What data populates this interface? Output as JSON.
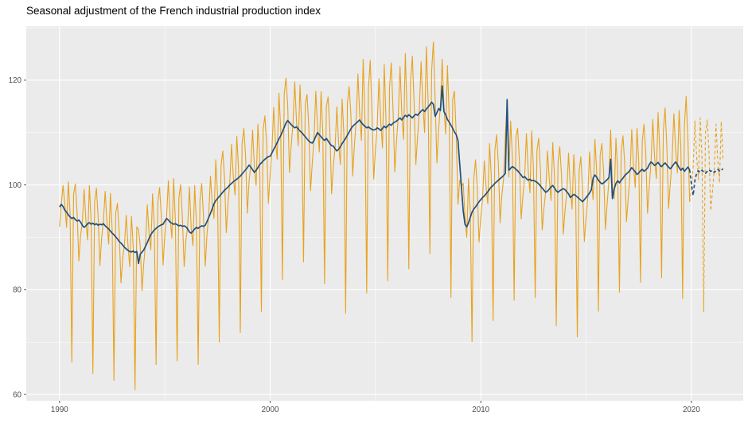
{
  "title": "Seasonal adjustment of the French industrial production index",
  "colors": {
    "raw": "#E8A21D",
    "adjusted": "#21507F",
    "panel_bg": "#EBEBEB",
    "grid_major": "#FFFFFF",
    "grid_minor": "#F6F6F6",
    "tick_mark": "#333333",
    "tick_text": "#4D4D4D",
    "title_text": "#000000"
  },
  "chart_data": {
    "type": "line",
    "title": "Seasonal adjustment of the French industrial production index",
    "xlabel": "",
    "ylabel": "",
    "grid": true,
    "legend": "none",
    "x_axis": {
      "range": [
        1988.42,
        2022.46
      ],
      "ticks": [
        1990,
        2000,
        2010,
        2020
      ],
      "minor_ticks": [
        1995,
        2005,
        2015
      ]
    },
    "y_axis": {
      "range": [
        58.8,
        130.3
      ],
      "ticks": [
        60,
        80,
        100,
        120
      ],
      "minor_ticks": [
        70,
        90,
        110,
        130
      ]
    },
    "start_year": 1990,
    "frequency": 12,
    "series": [
      {
        "name": "raw_index",
        "style": "solid",
        "color_key": "raw",
        "width": 1.1,
        "start_index": 0,
        "values": [
          92.0,
          96.4,
          99.9,
          96.3,
          91.9,
          100.6,
          94.5,
          66.2,
          98.2,
          100.2,
          94.7,
          85.5,
          90.3,
          92.9,
          99.2,
          93.3,
          89.5,
          99.9,
          93.1,
          64.0,
          96.8,
          99.4,
          93.9,
          84.6,
          89.9,
          93.1,
          98.8,
          92.9,
          88.7,
          98.4,
          91.4,
          62.7,
          94.6,
          96.5,
          90.8,
          81.3,
          86.0,
          88.6,
          94.2,
          88.5,
          84.4,
          94.0,
          88.0,
          60.9,
          92.0,
          91.5,
          88.3,
          79.8,
          85.1,
          88.8,
          96.2,
          90.8,
          87.6,
          98.3,
          92.0,
          65.7,
          96.7,
          99.5,
          94.0,
          84.7,
          90.6,
          94.1,
          100.8,
          93.9,
          89.8,
          101.2,
          93.1,
          66.4,
          97.5,
          100.1,
          93.7,
          84.4,
          89.5,
          92.1,
          99.6,
          91.8,
          88.4,
          99.9,
          92.5,
          65.7,
          97.1,
          100.3,
          94.2,
          84.5,
          90.5,
          94.3,
          101.7,
          96.5,
          93.6,
          104.8,
          98.4,
          70.0,
          103.7,
          106.5,
          101.4,
          90.9,
          96.6,
          100.5,
          107.8,
          101.6,
          98.1,
          109.3,
          102.9,
          71.8,
          107.9,
          110.8,
          105.5,
          94.6,
          100.8,
          103.9,
          110.5,
          103.4,
          99.9,
          111.6,
          105.4,
          75.8,
          110.6,
          113.2,
          107.8,
          96.5,
          102.1,
          106.6,
          114.8,
          108.4,
          104.9,
          117.5,
          110.8,
          81.9,
          117.3,
          120.4,
          115.2,
          102.4,
          107.6,
          111.7,
          119.7,
          112.2,
          107.5,
          119.1,
          111.2,
          85.3,
          115.4,
          117.3,
          111.1,
          98.9,
          104.2,
          108.9,
          117.9,
          111.1,
          106.3,
          117.8,
          110.0,
          81.2,
          114.9,
          116.8,
          110.5,
          98.3,
          103.6,
          107.2,
          114.9,
          107.9,
          103.9,
          116.4,
          109.7,
          75.5,
          115.6,
          118.8,
          113.4,
          101.7,
          107.6,
          112.3,
          121.2,
          113.5,
          108.5,
          124.0,
          112.4,
          79.4,
          118.3,
          123.8,
          113.9,
          101.1,
          106.8,
          111.5,
          120.3,
          112.2,
          107.1,
          123.0,
          112.2,
          81.7,
          118.6,
          123.3,
          114.5,
          102.5,
          108.4,
          113.2,
          122.6,
          113.6,
          108.7,
          125.1,
          114.0,
          84.0,
          119.8,
          124.6,
          115.7,
          103.9,
          109.2,
          114.4,
          123.5,
          115.4,
          110.0,
          126.4,
          115.9,
          86.9,
          121.8,
          127.3,
          116.3,
          104.2,
          110.7,
          115.3,
          124.0,
          115.1,
          109.7,
          122.8,
          113.2,
          78.5,
          116.4,
          117.9,
          109.8,
          96.3,
          100.9,
          99.8,
          100.3,
          93.9,
          90.0,
          101.2,
          95.1,
          70.1,
          101.1,
          104.8,
          99.3,
          89.1,
          93.9,
          97.3,
          104.6,
          99.7,
          96.4,
          107.9,
          101.6,
          74.1,
          106.5,
          109.6,
          104.1,
          92.8,
          98.0,
          101.3,
          109.5,
          115.3,
          101.5,
          112.2,
          105.3,
          78.0,
          109.2,
          110.8,
          104.6,
          93.5,
          97.9,
          101.6,
          109.8,
          102.8,
          98.5,
          110.3,
          103.1,
          78.5,
          106.6,
          108.9,
          102.9,
          91.4,
          95.6,
          98.8,
          106.5,
          101.3,
          97.0,
          108.1,
          101.6,
          73.1,
          104.4,
          107.3,
          101.9,
          90.6,
          95.1,
          98.5,
          106.1,
          99.5,
          95.4,
          105.8,
          99.8,
          71.0,
          102.6,
          105.4,
          99.1,
          89.2,
          93.7,
          97.9,
          106.3,
          100.9,
          97.2,
          108.7,
          102.9,
          75.9,
          105.6,
          107.9,
          102.3,
          91.5,
          96.4,
          100.9,
          110.5,
          99.8,
          97.4,
          108.9,
          102.2,
          79.5,
          106.3,
          109.4,
          104.1,
          93.0,
          97.5,
          101.8,
          110.6,
          103.6,
          99.5,
          110.8,
          104.3,
          81.4,
          108.4,
          111.6,
          106.0,
          94.6,
          99.8,
          104.3,
          112.5,
          105.4,
          101.2,
          113.8,
          106.5,
          82.3,
          110.2,
          114.7,
          107.3,
          95.5,
          100.4,
          104.8,
          113.6,
          106.9,
          102.3,
          114.2,
          107.0,
          78.3,
          111.3,
          116.9,
          108.8,
          96.8
        ]
      },
      {
        "name": "seasonally_adjusted_index",
        "style": "solid",
        "color_key": "adjusted",
        "width": 1.7,
        "start_index": 0,
        "values": [
          95.8,
          96.3,
          95.9,
          95.2,
          94.8,
          94.3,
          93.9,
          93.6,
          93.8,
          93.4,
          93.1,
          93.3,
          92.9,
          92.3,
          91.9,
          92.2,
          92.6,
          92.8,
          92.5,
          92.7,
          92.4,
          92.6,
          92.3,
          92.5,
          92.4,
          92.6,
          92.2,
          91.9,
          91.6,
          91.2,
          90.8,
          90.5,
          90.1,
          89.7,
          89.2,
          88.9,
          88.5,
          88.1,
          87.8,
          87.5,
          87.3,
          87.2,
          87.4,
          87.1,
          87.3,
          85.0,
          86.8,
          87.2,
          87.6,
          88.3,
          89.0,
          89.8,
          90.5,
          91.0,
          91.4,
          91.7,
          92.0,
          92.2,
          92.4,
          92.5,
          93.1,
          93.6,
          93.3,
          92.9,
          92.7,
          92.5,
          92.6,
          92.4,
          92.2,
          92.3,
          92.1,
          92.2,
          92.0,
          91.6,
          91.0,
          90.8,
          91.2,
          91.6,
          91.9,
          91.7,
          92.0,
          92.2,
          92.1,
          92.3,
          93.0,
          93.8,
          94.6,
          95.5,
          96.4,
          97.0,
          97.4,
          97.8,
          98.2,
          98.6,
          99.0,
          99.3,
          99.6,
          100.0,
          100.3,
          100.6,
          100.9,
          101.1,
          101.4,
          101.7,
          102.1,
          102.5,
          102.9,
          103.3,
          103.8,
          103.4,
          102.9,
          102.4,
          102.8,
          103.3,
          103.9,
          104.2,
          104.6,
          104.9,
          105.2,
          105.4,
          105.5,
          106.1,
          106.8,
          107.4,
          108.1,
          108.8,
          109.4,
          110.2,
          111.0,
          111.8,
          112.3,
          111.9,
          111.5,
          111.2,
          110.9,
          111.1,
          110.7,
          110.3,
          110.0,
          109.6,
          109.2,
          108.8,
          108.4,
          108.1,
          108.0,
          108.5,
          109.3,
          110.0,
          109.6,
          109.2,
          108.8,
          108.5,
          108.9,
          108.4,
          107.9,
          107.5,
          107.4,
          106.9,
          106.5,
          106.8,
          107.3,
          107.9,
          108.4,
          108.9,
          109.5,
          110.1,
          110.7,
          111.2,
          111.5,
          111.8,
          112.1,
          112.4,
          111.9,
          111.5,
          111.2,
          110.9,
          111.1,
          110.8,
          110.6,
          110.5,
          110.6,
          110.9,
          110.7,
          110.4,
          110.8,
          111.2,
          110.9,
          111.3,
          111.6,
          111.4,
          111.8,
          112.0,
          112.2,
          112.5,
          112.8,
          112.4,
          112.9,
          113.3,
          113.0,
          113.4,
          113.1,
          112.8,
          113.2,
          113.5,
          113.3,
          113.7,
          114.1,
          114.4,
          114.0,
          114.5,
          114.9,
          115.3,
          115.8,
          115.4,
          113.1,
          113.8,
          114.6,
          114.2,
          118.9,
          114.0,
          113.4,
          112.5,
          112.0,
          111.4,
          110.8,
          110.1,
          109.6,
          108.5,
          104.0,
          99.5,
          95.0,
          92.5,
          92.0,
          92.8,
          93.8,
          94.8,
          95.4,
          95.8,
          96.3,
          96.8,
          97.2,
          97.6,
          97.9,
          98.3,
          98.7,
          99.2,
          99.6,
          99.9,
          100.3,
          100.6,
          100.9,
          101.2,
          101.5,
          101.8,
          102.2,
          116.3,
          102.8,
          103.2,
          103.5,
          103.3,
          103.0,
          102.7,
          102.3,
          101.9,
          101.4,
          101.6,
          101.2,
          100.9,
          101.1,
          100.8,
          100.9,
          100.7,
          100.5,
          100.2,
          99.8,
          99.4,
          99.0,
          98.6,
          98.8,
          99.2,
          99.6,
          99.9,
          99.4,
          98.9,
          98.6,
          98.9,
          99.1,
          99.3,
          99.1,
          98.7,
          98.3,
          97.6,
          97.9,
          98.2,
          98.0,
          97.7,
          97.4,
          97.1,
          96.8,
          97.2,
          97.6,
          98.0,
          98.5,
          99.1,
          101.3,
          101.9,
          101.5,
          100.9,
          100.5,
          100.2,
          100.4,
          100.7,
          101.0,
          101.4,
          104.9,
          97.4,
          99.2,
          100.3,
          100.8,
          100.4,
          100.9,
          101.3,
          101.8,
          102.1,
          102.4,
          102.8,
          103.3,
          102.9,
          102.5,
          102.0,
          102.3,
          102.7,
          103.0,
          102.6,
          102.9,
          103.2,
          103.9,
          104.4,
          104.1,
          103.7,
          104.0,
          104.3,
          103.8,
          103.5,
          103.9,
          104.2,
          103.8,
          103.4,
          103.1,
          103.5,
          104.0,
          104.4,
          103.9,
          103.3,
          102.8,
          103.2,
          102.6,
          103.0,
          103.4,
          102.9
        ]
      },
      {
        "name": "raw_index_forecast",
        "style": "dashed",
        "color_key": "raw",
        "width": 1.1,
        "start_index": 359,
        "values": [
          96.8,
          99.3,
          103.5,
          112.2,
          105.3,
          101.0,
          112.8,
          105.6,
          75.8,
          109.9,
          112.4,
          106.5,
          95.1,
          98.7,
          102.9,
          111.6,
          104.8,
          100.4,
          112.1,
          105.0
        ]
      },
      {
        "name": "seasonally_adjusted_forecast",
        "style": "dashed",
        "color_key": "adjusted",
        "width": 1.7,
        "start_index": 359,
        "values": [
          102.9,
          100.2,
          98.0,
          100.9,
          102.3,
          102.7,
          102.4,
          102.8,
          102.5,
          102.2,
          102.6,
          102.9,
          102.6,
          102.8,
          102.4,
          102.7,
          103.0,
          102.6,
          102.8,
          103.1
        ]
      }
    ]
  },
  "axis_labels": {
    "y": [
      "60",
      "80",
      "100",
      "120"
    ],
    "x": [
      "1990",
      "2000",
      "2010",
      "2020"
    ]
  }
}
